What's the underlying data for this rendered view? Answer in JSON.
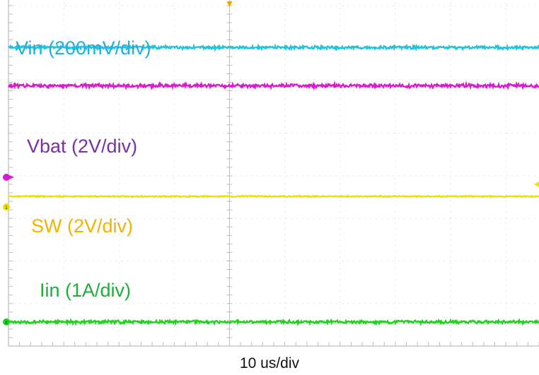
{
  "chart_data": {
    "type": "line",
    "description_type": "oscilloscope capture",
    "xlabel": "10 us/div",
    "grid": true,
    "channels": [
      {
        "name": "Vin (200mV/div)",
        "color": "#22c4d8",
        "level_div": 3.05,
        "noise": 0.03
      },
      {
        "name": "Vbat (2V/div)",
        "color": "#d81ad0",
        "level_div": 2.15,
        "noise": 0.035
      },
      {
        "name": "SW (2V/div)",
        "color": "#eee000",
        "level_div": -0.45,
        "noise": 0.012
      },
      {
        "name": "Iin (1A/div)",
        "color": "#1ed21e",
        "level_div": -3.4,
        "noise": 0.03
      }
    ],
    "ground_markers": [
      {
        "label": "1",
        "color": "#eee000"
      },
      {
        "label": "4",
        "color": "#1ed21e"
      }
    ],
    "label_colors": {
      "Vin (200mV/div)": "#22aee0",
      "Vbat (2V/div)": "#7a2fa8",
      "SW (2V/div)": "#f2b200",
      "Iin (1A/div)": "#1fae3a"
    }
  }
}
